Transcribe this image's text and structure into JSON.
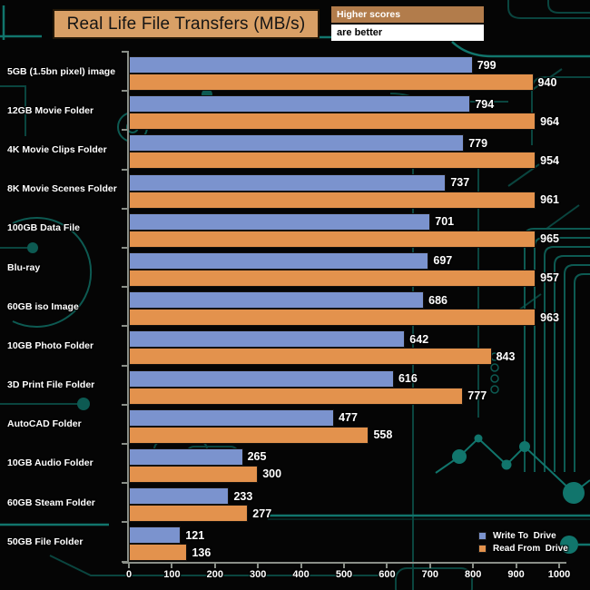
{
  "title": "Real Life File Transfers (MB/s)",
  "note": {
    "line1": "Higher scores",
    "line2": "are better"
  },
  "legend": [
    {
      "label": "Write To  Drive",
      "color": "#7b93ce"
    },
    {
      "label": "Read From  Drive",
      "color": "#e3924d"
    }
  ],
  "chart_data": {
    "type": "bar",
    "orientation": "horizontal",
    "title": "Real Life File Transfers (MB/s)",
    "annotation": "Higher scores are better",
    "categories": [
      "5GB (1.5bn pixel) image",
      "12GB Movie Folder",
      "4K Movie Clips Folder",
      "8K Movie Scenes Folder",
      "100GB Data File",
      "Blu-ray",
      "60GB iso Image",
      "10GB Photo Folder",
      "3D Print File Folder",
      "AutoCAD Folder",
      "10GB Audio Folder",
      "60GB Steam Folder",
      "50GB File Folder"
    ],
    "series": [
      {
        "name": "Write To  Drive",
        "color": "#7b93ce",
        "values": [
          799,
          794,
          779,
          737,
          701,
          697,
          686,
          642,
          616,
          477,
          265,
          233,
          121
        ]
      },
      {
        "name": "Read From  Drive",
        "color": "#e3924d",
        "values": [
          940,
          964,
          954,
          961,
          965,
          957,
          963,
          843,
          777,
          558,
          300,
          277,
          136
        ]
      }
    ],
    "xlim": [
      0,
      1000
    ],
    "x_ticks": [
      0,
      100,
      200,
      300,
      400,
      500,
      600,
      700,
      800,
      900,
      1000
    ],
    "grid": false,
    "value_labels": true,
    "legend_position": "bottom-right"
  },
  "colors": {
    "write_bar": "#7b93ce",
    "read_bar": "#e3924d",
    "title_box_bg": "#d9a066",
    "note_header_bg": "#b27c4b",
    "axis": "#8a8f88",
    "background": "#050505",
    "circuit_trace": "#11756c"
  }
}
